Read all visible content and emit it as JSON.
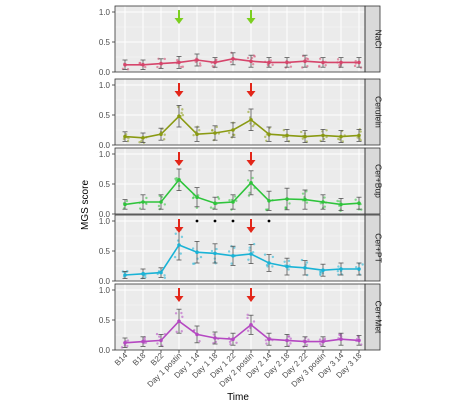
{
  "chart_data": {
    "type": "line",
    "xlabel": "Time",
    "ylabel": "MGS score",
    "ylim": [
      0,
      1.1
    ],
    "yticks": [
      0.0,
      0.5,
      1.0
    ],
    "categories": [
      "B14",
      "B18",
      "B22",
      "Day 1 postin",
      "Day 1 14",
      "Day 1 18",
      "Day 1 22",
      "Day 2 postin",
      "Day 2 14",
      "Day 2 18",
      "Day 2 22",
      "Day 3 postin",
      "Day 3 14",
      "Day 3 18"
    ],
    "panels": [
      {
        "name": "NaCl",
        "color": "#d6456b",
        "arrow_color": "#7ccf1f",
        "arrows_at": [
          "Day 1 postin",
          "Day 2 postin"
        ],
        "significance_at": [],
        "values": [
          0.12,
          0.12,
          0.14,
          0.16,
          0.2,
          0.16,
          0.22,
          0.18,
          0.16,
          0.16,
          0.18,
          0.16,
          0.16,
          0.16
        ],
        "errors": [
          0.08,
          0.08,
          0.08,
          0.1,
          0.1,
          0.08,
          0.1,
          0.1,
          0.08,
          0.08,
          0.1,
          0.08,
          0.08,
          0.08
        ]
      },
      {
        "name": "Cerulein",
        "color": "#8a9a12",
        "arrow_color": "#e32619",
        "arrows_at": [
          "Day 1 postin",
          "Day 2 postin"
        ],
        "significance_at": [],
        "values": [
          0.14,
          0.12,
          0.18,
          0.48,
          0.18,
          0.2,
          0.25,
          0.42,
          0.18,
          0.16,
          0.14,
          0.16,
          0.14,
          0.16
        ],
        "errors": [
          0.08,
          0.08,
          0.1,
          0.18,
          0.12,
          0.12,
          0.12,
          0.18,
          0.12,
          0.1,
          0.1,
          0.1,
          0.1,
          0.1
        ]
      },
      {
        "name": "Cer+Bup",
        "color": "#2ec43b",
        "arrow_color": "#e32619",
        "arrows_at": [
          "Day 1 postin",
          "Day 2 postin"
        ],
        "significance_at": [],
        "values": [
          0.16,
          0.2,
          0.2,
          0.57,
          0.28,
          0.18,
          0.2,
          0.52,
          0.22,
          0.25,
          0.24,
          0.2,
          0.16,
          0.18
        ],
        "errors": [
          0.08,
          0.12,
          0.12,
          0.18,
          0.16,
          0.1,
          0.12,
          0.2,
          0.16,
          0.18,
          0.16,
          0.12,
          0.1,
          0.1
        ]
      },
      {
        "name": "Cer+PT",
        "color": "#1ab3d6",
        "arrow_color": "#e32619",
        "arrows_at": [
          "Day 1 postin",
          "Day 2 postin"
        ],
        "significance_at": [
          "Day 1 14",
          "Day 1 18",
          "Day 1 22",
          "Day 2 14"
        ],
        "values": [
          0.1,
          0.12,
          0.14,
          0.6,
          0.48,
          0.46,
          0.42,
          0.45,
          0.3,
          0.24,
          0.22,
          0.18,
          0.2,
          0.2
        ],
        "errors": [
          0.06,
          0.08,
          0.08,
          0.25,
          0.18,
          0.16,
          0.16,
          0.16,
          0.14,
          0.14,
          0.12,
          0.1,
          0.1,
          0.1
        ]
      },
      {
        "name": "Cer+Met",
        "color": "#b548c2",
        "arrow_color": "#e32619",
        "arrows_at": [
          "Day 1 postin",
          "Day 2 postin"
        ],
        "significance_at": [],
        "values": [
          0.12,
          0.14,
          0.16,
          0.48,
          0.26,
          0.2,
          0.18,
          0.42,
          0.18,
          0.16,
          0.14,
          0.14,
          0.18,
          0.16
        ],
        "errors": [
          0.08,
          0.08,
          0.1,
          0.2,
          0.14,
          0.1,
          0.1,
          0.16,
          0.1,
          0.1,
          0.08,
          0.08,
          0.1,
          0.08
        ]
      }
    ],
    "grid": true,
    "legend": "none"
  }
}
